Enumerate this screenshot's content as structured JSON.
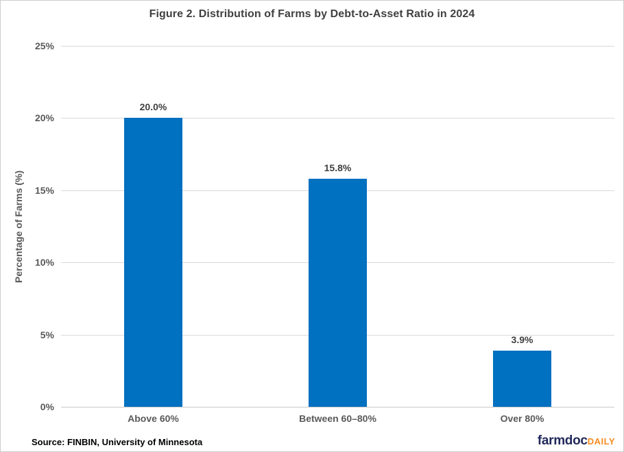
{
  "header": {
    "title": "Figure 2. Distribution of Farms by Debt-to-Asset Ratio in 2024"
  },
  "footer": {
    "source": "Source: FINBIN, University of Minnesota",
    "logo_farmdoc": "farmdoc",
    "logo_daily": "DAILY"
  },
  "colors": {
    "bar": "#0070C0",
    "gridline": "#D9D9D9",
    "axis_line": "#C9C9C9",
    "title_text": "#404040",
    "axis_text": "#595959",
    "value_text": "#404040",
    "source_text": "#000000",
    "logo_navy": "#21295B",
    "logo_orange": "#F68B1F",
    "canvas_border": "#CCCCCC"
  },
  "chart_data": {
    "type": "bar",
    "title": "Figure 2. Distribution of Farms by Debt-to-Asset Ratio in 2024",
    "categories": [
      "Above 60%",
      "Between 60–80%",
      "Over 80%"
    ],
    "values": [
      20.0,
      15.8,
      3.9
    ],
    "value_labels": [
      "20.0%",
      "15.8%",
      "3.9%"
    ],
    "xlabel": "",
    "ylabel": "Percentage of Farms (%)",
    "ylim": [
      0,
      25
    ],
    "yticks": [
      0,
      5,
      10,
      15,
      20,
      25
    ],
    "ytick_labels": [
      "0%",
      "5%",
      "10%",
      "15%",
      "20%",
      "25%"
    ],
    "grid": true,
    "legend": false,
    "bar_color": "#0070C0"
  }
}
